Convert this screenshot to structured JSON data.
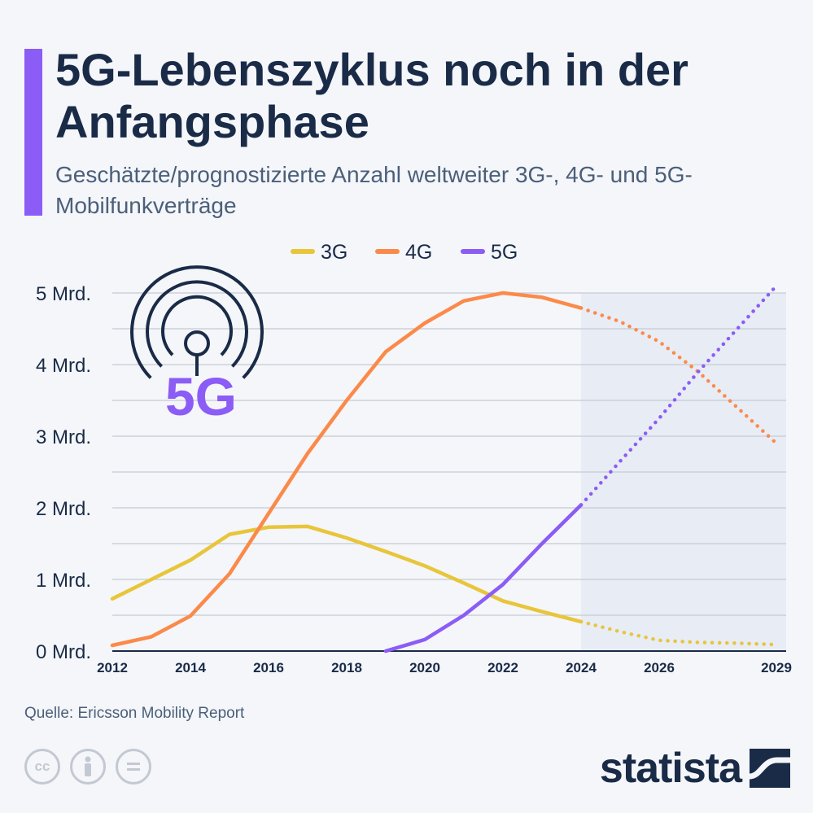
{
  "header": {
    "title": "5G-Lebenszyklus noch in der Anfangsphase",
    "subtitle": "Geschätzte/prognostizierte Anzahl weltweiter 3G-, 4G- und 5G-Mobilfunkverträge"
  },
  "chart_data": {
    "type": "line",
    "x": [
      2012,
      2013,
      2014,
      2015,
      2016,
      2017,
      2018,
      2019,
      2020,
      2021,
      2022,
      2023,
      2024,
      2025,
      2026,
      2027,
      2028,
      2029
    ],
    "xticks": [
      2012,
      2014,
      2016,
      2018,
      2020,
      2022,
      2024,
      2026,
      2029
    ],
    "xtick_labels": [
      "2012",
      "2014",
      "2016",
      "2018",
      "2020",
      "2022",
      "2024",
      "2026",
      "2029"
    ],
    "yticks": [
      0,
      1,
      2,
      3,
      4,
      5
    ],
    "ytick_labels": [
      "0 Mrd.",
      "1 Mrd.",
      "2 Mrd.",
      "3 Mrd.",
      "4 Mrd.",
      "5 Mrd."
    ],
    "ylim": [
      0,
      5
    ],
    "xlim": [
      2012,
      2029.25
    ],
    "forecast_from": 2024,
    "grid": true,
    "legend_position": "top-center",
    "series": [
      {
        "name": "3G",
        "color": "#e8c53a",
        "values": [
          0.73,
          1.0,
          1.27,
          1.63,
          1.73,
          1.74,
          1.58,
          1.39,
          1.19,
          0.95,
          0.7,
          0.55,
          0.41,
          0.27,
          0.15,
          0.12,
          0.11,
          0.09
        ]
      },
      {
        "name": "4G",
        "color": "#fb8a4a",
        "values": [
          0.08,
          0.2,
          0.49,
          1.08,
          1.92,
          2.76,
          3.5,
          4.18,
          4.58,
          4.89,
          5.0,
          4.94,
          4.79,
          4.6,
          4.32,
          3.9,
          3.4,
          2.9
        ]
      },
      {
        "name": "5G",
        "color": "#8b5cf6",
        "values": [
          null,
          null,
          null,
          null,
          null,
          null,
          null,
          0.0,
          0.16,
          0.5,
          0.93,
          1.5,
          2.04,
          2.65,
          3.25,
          3.9,
          4.5,
          5.1
        ]
      }
    ]
  },
  "badge": {
    "label": "5G"
  },
  "footer": {
    "source": "Quelle: Ericsson Mobility Report",
    "cc_icons": [
      "cc-icon",
      "person-icon",
      "equals-icon"
    ],
    "logo": "statista"
  }
}
